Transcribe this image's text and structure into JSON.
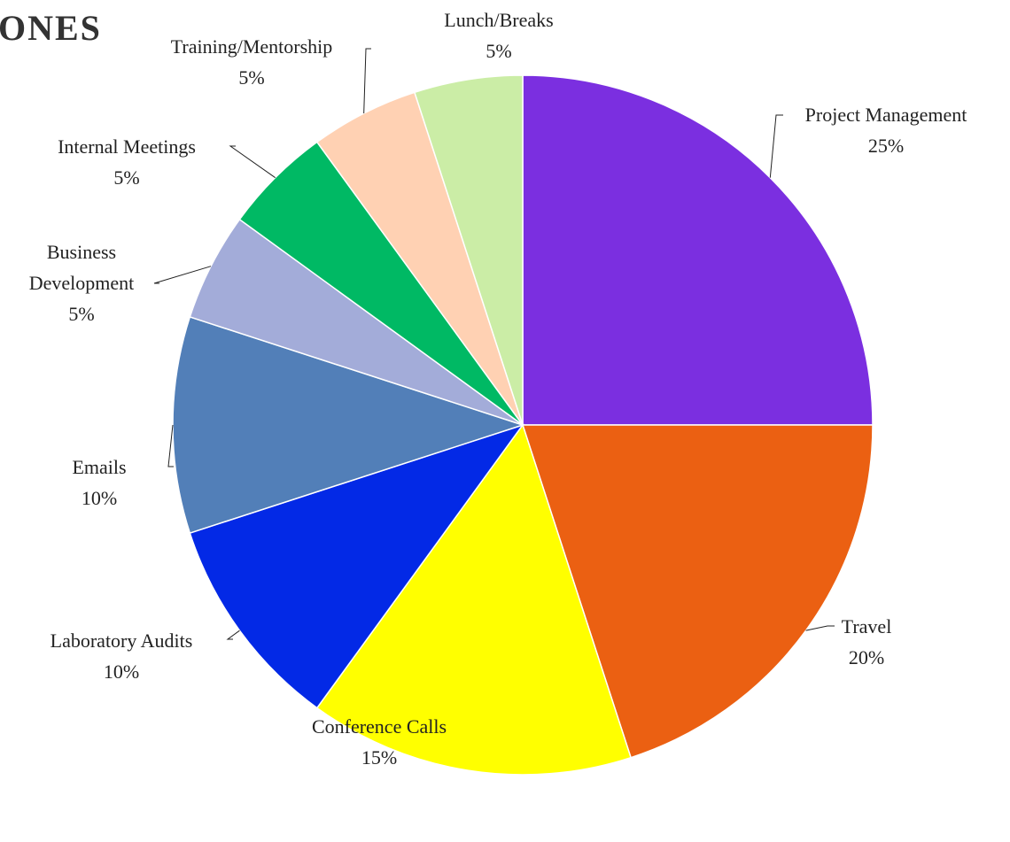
{
  "chart_data": {
    "type": "pie",
    "title": "ONES",
    "categories": [
      "Project Management",
      "Travel",
      "Conference Calls",
      "Laboratory Audits",
      "Emails",
      "Business Development",
      "Internal Meetings",
      "Training/Mentorship",
      "Lunch/Breaks"
    ],
    "values": [
      25,
      20,
      15,
      10,
      10,
      5,
      5,
      5,
      5
    ],
    "value_labels": [
      "25%",
      "20%",
      "15%",
      "10%",
      "10%",
      "5%",
      "5%",
      "5%",
      "5%"
    ],
    "colors": [
      "#7b2fe0",
      "#eb6012",
      "#ffff00",
      "#0329e6",
      "#527fb8",
      "#a3acd9",
      "#00b964",
      "#ffd1b3",
      "#cbeda6"
    ]
  }
}
